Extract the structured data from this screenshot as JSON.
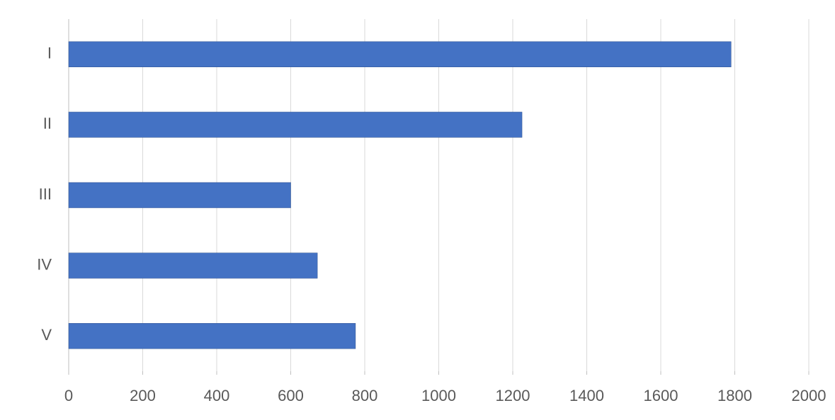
{
  "chart_data": {
    "type": "bar",
    "orientation": "horizontal",
    "categories": [
      "I",
      "II",
      "III",
      "IV",
      "V"
    ],
    "values": [
      1790,
      1225,
      600,
      672,
      775
    ],
    "color": "#4472c4",
    "xlim": [
      0,
      2000
    ],
    "xticks": [
      0,
      200,
      400,
      600,
      800,
      1000,
      1200,
      1400,
      1600,
      1800,
      2000
    ],
    "grid": true
  }
}
